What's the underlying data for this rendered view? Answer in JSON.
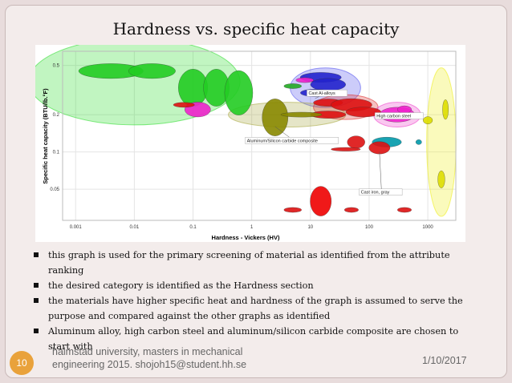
{
  "slide": {
    "title": "Hardness vs. specific heat capacity",
    "bullets": [
      "this graph is used for the primary screening of material as identified from the attribute ranking",
      "the desired category is identified as the Hardness section",
      "the materials have higher specific heat and hardness of the graph is assumed to serve the purpose and compared against the other graphs as identified",
      "Aluminum alloy, high carbon steel and aluminum/silicon carbide composite are chosen to start with"
    ],
    "footer": {
      "slide_number": "10",
      "line1": "halmstad university,  masters in mechanical",
      "line2": "engineering 2015.  shojoh15@student.hh.se",
      "date": "1/10/2017"
    }
  },
  "chart_data": {
    "type": "scatter",
    "xlabel": "Hardness - Vickers (HV)",
    "ylabel": "Specific heat capacity (BTU/lb.°F)",
    "x_scale": "log",
    "y_scale": "log",
    "xlim": [
      0.0006,
      3000
    ],
    "ylim": [
      0.028,
      0.65
    ],
    "x_ticks": [
      "0.001",
      "0.01",
      "0.1",
      "1",
      "10",
      "100",
      "1000"
    ],
    "y_ticks": [
      "0.5",
      "0.2",
      "0.1",
      "0.05"
    ],
    "annotations": [
      "Cast Al-alloys",
      "Aluminum/Silicon carbide composite",
      "High carbon steel",
      "Cast iron, gray"
    ],
    "bubbles": [
      {
        "x": 0.004,
        "y": 0.45,
        "rx": 0.55,
        "ry": 0.06,
        "color": "#22cc22"
      },
      {
        "x": 0.02,
        "y": 0.45,
        "rx": 0.4,
        "ry": 0.06,
        "color": "#22cc22"
      },
      {
        "x": 0.1,
        "y": 0.33,
        "rx": 0.25,
        "ry": 0.15,
        "color": "#22cc22"
      },
      {
        "x": 0.25,
        "y": 0.33,
        "rx": 0.22,
        "ry": 0.15,
        "color": "#22cc22"
      },
      {
        "x": 0.6,
        "y": 0.3,
        "rx": 0.24,
        "ry": 0.18,
        "color": "#22cc22"
      },
      {
        "x": 0.12,
        "y": 0.22,
        "rx": 0.22,
        "ry": 0.06,
        "color": "#ee22cc"
      },
      {
        "x": 0.07,
        "y": 0.24,
        "rx": 0.18,
        "ry": 0.02,
        "color": "#dd1111"
      },
      {
        "x": 2.5,
        "y": 0.19,
        "rx": 0.22,
        "ry": 0.15,
        "color": "#888800"
      },
      {
        "x": 15,
        "y": 0.4,
        "rx": 0.35,
        "ry": 0.04,
        "color": "#2222cc"
      },
      {
        "x": 20,
        "y": 0.35,
        "rx": 0.3,
        "ry": 0.05,
        "color": "#2222cc"
      },
      {
        "x": 12,
        "y": 0.3,
        "rx": 0.25,
        "ry": 0.03,
        "color": "#2222cc"
      },
      {
        "x": 8,
        "y": 0.38,
        "rx": 0.15,
        "ry": 0.02,
        "color": "#ee22cc"
      },
      {
        "x": 5,
        "y": 0.34,
        "rx": 0.15,
        "ry": 0.02,
        "color": "#22aa22"
      },
      {
        "x": 20,
        "y": 0.25,
        "rx": 0.25,
        "ry": 0.03,
        "color": "#dd1111"
      },
      {
        "x": 50,
        "y": 0.24,
        "rx": 0.35,
        "ry": 0.05,
        "color": "#dd1111"
      },
      {
        "x": 80,
        "y": 0.21,
        "rx": 0.3,
        "ry": 0.04,
        "color": "#dd1111"
      },
      {
        "x": 300,
        "y": 0.2,
        "rx": 0.3,
        "ry": 0.06,
        "color": "#ee22cc"
      },
      {
        "x": 400,
        "y": 0.22,
        "rx": 0.12,
        "ry": 0.03,
        "color": "#ee22cc"
      },
      {
        "x": 20,
        "y": 0.2,
        "rx": 0.3,
        "ry": 0.03,
        "color": "#dd1111"
      },
      {
        "x": 7,
        "y": 0.2,
        "rx": 0.35,
        "ry": 0.02,
        "color": "#888800"
      },
      {
        "x": 60,
        "y": 0.12,
        "rx": 0.15,
        "ry": 0.05,
        "color": "#dd1111"
      },
      {
        "x": 200,
        "y": 0.12,
        "rx": 0.25,
        "ry": 0.04,
        "color": "#0099aa"
      },
      {
        "x": 150,
        "y": 0.108,
        "rx": 0.18,
        "ry": 0.05,
        "color": "#dd1111"
      },
      {
        "x": 40,
        "y": 0.105,
        "rx": 0.25,
        "ry": 0.015,
        "color": "#dd1111"
      },
      {
        "x": 15,
        "y": 0.04,
        "rx": 0.18,
        "ry": 0.12,
        "color": "#ee0000"
      },
      {
        "x": 5,
        "y": 0.034,
        "rx": 0.15,
        "ry": 0.02,
        "color": "#dd1111"
      },
      {
        "x": 50,
        "y": 0.034,
        "rx": 0.12,
        "ry": 0.02,
        "color": "#dd1111"
      },
      {
        "x": 400,
        "y": 0.034,
        "rx": 0.12,
        "ry": 0.02,
        "color": "#dd1111"
      },
      {
        "x": 2000,
        "y": 0.22,
        "rx": 0.05,
        "ry": 0.08,
        "color": "#dddd00"
      },
      {
        "x": 1700,
        "y": 0.06,
        "rx": 0.06,
        "ry": 0.07,
        "color": "#dddd00"
      },
      {
        "x": 1000,
        "y": 0.18,
        "rx": 0.08,
        "ry": 0.03,
        "color": "#dddd00"
      },
      {
        "x": 700,
        "y": 0.12,
        "rx": 0.05,
        "ry": 0.02,
        "color": "#0099aa"
      }
    ],
    "regions": [
      {
        "x": 0.01,
        "y": 0.37,
        "rx": 1.8,
        "ry": 0.35,
        "color": "#33dd33"
      },
      {
        "x": 18,
        "y": 0.33,
        "rx": 0.6,
        "ry": 0.16,
        "color": "#5555ee"
      },
      {
        "x": 4,
        "y": 0.2,
        "rx": 1.0,
        "ry": 0.1,
        "color": "#aaaa44"
      },
      {
        "x": 40,
        "y": 0.23,
        "rx": 0.55,
        "ry": 0.1,
        "color": "#dd3333"
      },
      {
        "x": 300,
        "y": 0.2,
        "rx": 0.4,
        "ry": 0.1,
        "color": "#ee44cc"
      },
      {
        "x": 1700,
        "y": 0.12,
        "rx": 0.25,
        "ry": 0.6,
        "color": "#eeee22"
      }
    ]
  }
}
